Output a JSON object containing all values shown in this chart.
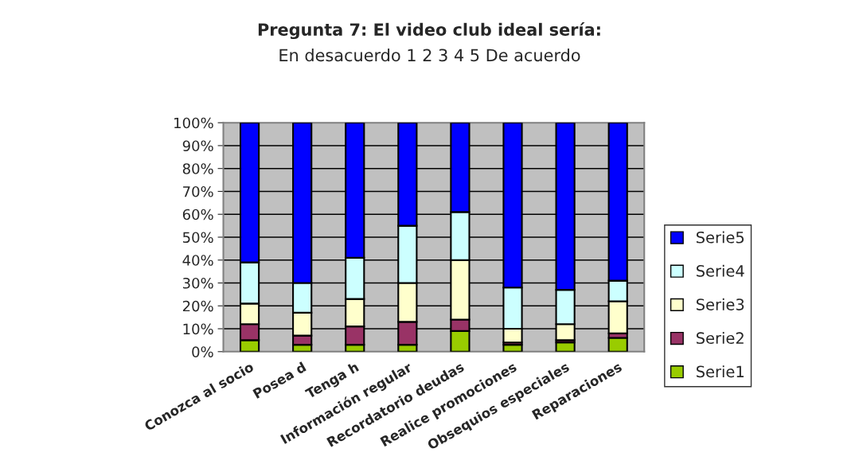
{
  "chart_data": {
    "type": "bar",
    "stacked": true,
    "title": "Pregunta 7: El video club ideal sería:",
    "subtitle": "En desacuerdo 1 2 3 4 5 De acuerdo",
    "categories": [
      "Conozca al socio",
      "Posea d",
      "Tenga h",
      "Información regular",
      "Recordatorio deudas",
      "Realice promociones",
      "Obsequios especiales",
      "Reparaciones"
    ],
    "series": [
      {
        "name": "Serie1",
        "color": "#99cc00",
        "values": [
          5,
          3,
          3,
          3,
          9,
          3,
          4,
          6
        ]
      },
      {
        "name": "Serie2",
        "color": "#993366",
        "values": [
          7,
          4,
          8,
          10,
          5,
          1,
          1,
          2
        ]
      },
      {
        "name": "Serie3",
        "color": "#ffffcc",
        "values": [
          9,
          10,
          12,
          17,
          26,
          6,
          7,
          14
        ]
      },
      {
        "name": "Serie4",
        "color": "#ccffff",
        "values": [
          18,
          13,
          18,
          25,
          21,
          18,
          15,
          9
        ]
      },
      {
        "name": "Serie5",
        "color": "#0000ff",
        "values": [
          61,
          70,
          59,
          45,
          39,
          72,
          73,
          69
        ]
      }
    ],
    "ylim": [
      0,
      100
    ],
    "yticks": [
      {
        "value": 0,
        "label": "0%"
      },
      {
        "value": 10,
        "label": "10%"
      },
      {
        "value": 20,
        "label": "20%"
      },
      {
        "value": 30,
        "label": "30%"
      },
      {
        "value": 40,
        "label": "40%"
      },
      {
        "value": 50,
        "label": "50%"
      },
      {
        "value": 60,
        "label": "60%"
      },
      {
        "value": 70,
        "label": "70%"
      },
      {
        "value": 80,
        "label": "80%"
      },
      {
        "value": 90,
        "label": "90%"
      },
      {
        "value": 100,
        "label": "100%"
      }
    ],
    "grid": "y",
    "legend": "right"
  }
}
